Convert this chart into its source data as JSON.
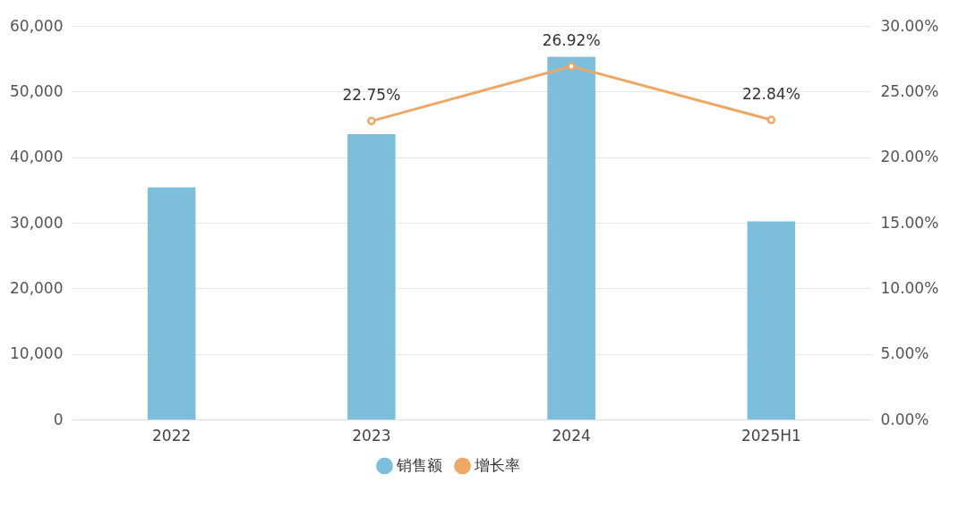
{
  "chart_data": {
    "type": "bar",
    "categories": [
      "2022",
      "2023",
      "2024",
      "2025H1"
    ],
    "series": [
      {
        "name": "销售额",
        "color": "#7dbfdb",
        "values": [
          35400,
          43500,
          55300,
          30200
        ]
      },
      {
        "name": "增长率",
        "type": "line",
        "axis": "y2",
        "color": "#eda866",
        "values": [
          null,
          22.75,
          26.92,
          22.84
        ],
        "marker": "circle",
        "value_labels": [
          null,
          "22.75%",
          "26.92%",
          "22.84%"
        ]
      }
    ],
    "ylim": [
      0,
      60000
    ],
    "yticks": [
      {
        "value": 0,
        "label": "0"
      },
      {
        "value": 10000,
        "label": "10,000"
      },
      {
        "value": 20000,
        "label": "20,000"
      },
      {
        "value": 30000,
        "label": "30,000"
      },
      {
        "value": 40000,
        "label": "40,000"
      },
      {
        "value": 50000,
        "label": "50,000"
      },
      {
        "value": 60000,
        "label": "60,000"
      }
    ],
    "y2lim": [
      0,
      30
    ],
    "y2ticks": [
      {
        "value": 0,
        "label": "0.00%"
      },
      {
        "value": 5,
        "label": "5.00%"
      },
      {
        "value": 10,
        "label": "10.00%"
      },
      {
        "value": 15,
        "label": "15.00%"
      },
      {
        "value": 20,
        "label": "20.00%"
      },
      {
        "value": 25,
        "label": "25.00%"
      },
      {
        "value": 30,
        "label": "30.00%"
      }
    ],
    "grid": "y",
    "legend": "bottom"
  }
}
